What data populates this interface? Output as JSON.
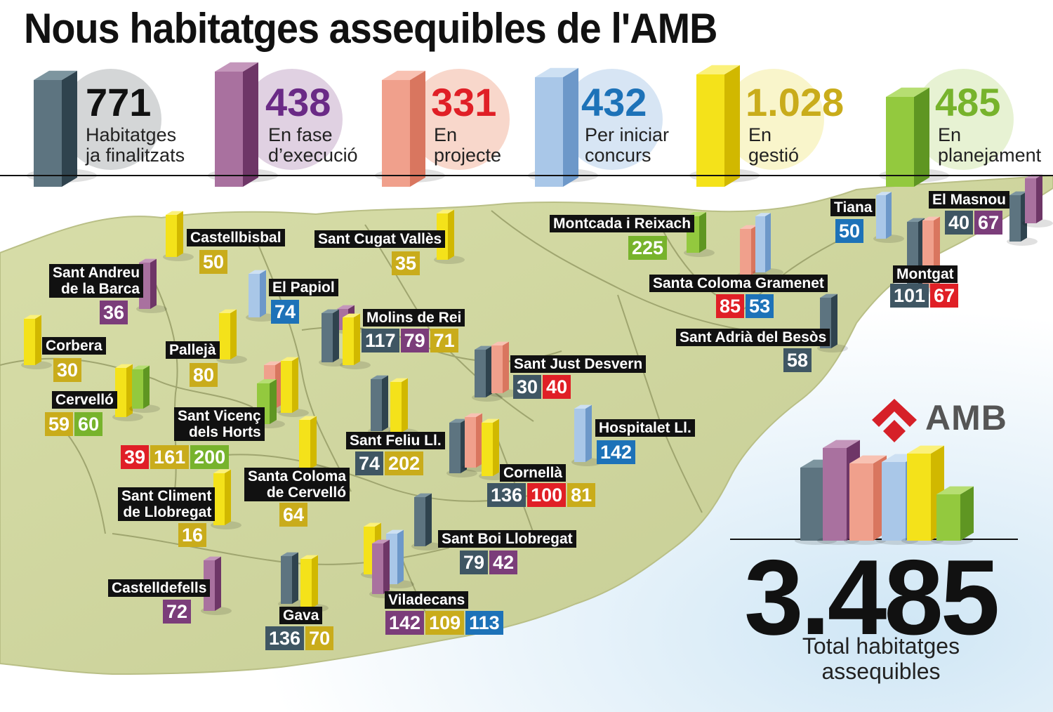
{
  "title": "Nous habitatges assequibles de l'AMB",
  "colors": {
    "finalitzats": "#3f5663",
    "execucio": "#7b3d7a",
    "projecte": "#e01f26",
    "iniciar_concurs": "#1d72b8",
    "gestio": "#c9ac1b",
    "planejament": "#77b32c"
  },
  "categories": [
    {
      "key": "finalitzats",
      "value": "771",
      "label_1": "Habitatges",
      "label_2": "ja finalitzats"
    },
    {
      "key": "execucio",
      "value": "438",
      "label_1": "En fase",
      "label_2": "d’execució"
    },
    {
      "key": "projecte",
      "value": "331",
      "label_1": "En",
      "label_2": "projecte"
    },
    {
      "key": "iniciar_concurs",
      "value": "432",
      "label_1": "Per iniciar",
      "label_2": "concurs"
    },
    {
      "key": "gestio",
      "value": "1.028",
      "label_1": "En",
      "label_2": "gestió"
    },
    {
      "key": "planejament",
      "value": "485",
      "label_1": "En",
      "label_2": "planejament"
    }
  ],
  "municipalities": [
    {
      "name_1": "Castellbisbal",
      "values": [
        {
          "v": "50",
          "cat": "gestio"
        }
      ]
    },
    {
      "name_1": "Sant Cugat Vallès",
      "values": [
        {
          "v": "35",
          "cat": "gestio"
        }
      ]
    },
    {
      "name_1": "Montcada i Reixach",
      "values": [
        {
          "v": "225",
          "cat": "planejament"
        }
      ]
    },
    {
      "name_1": "Tiana",
      "values": [
        {
          "v": "50",
          "cat": "iniciar_concurs"
        }
      ]
    },
    {
      "name_1": "El Masnou",
      "values": [
        {
          "v": "40",
          "cat": "finalitzats"
        },
        {
          "v": "67",
          "cat": "execucio"
        }
      ]
    },
    {
      "name_1": "Sant Andreu",
      "name_2": "de la Barca",
      "values": [
        {
          "v": "36",
          "cat": "execucio"
        }
      ]
    },
    {
      "name_1": "El Papiol",
      "values": [
        {
          "v": "74",
          "cat": "iniciar_concurs"
        }
      ]
    },
    {
      "name_1": "Molins de Rei",
      "values": [
        {
          "v": "117",
          "cat": "finalitzats"
        },
        {
          "v": "79",
          "cat": "execucio"
        },
        {
          "v": "71",
          "cat": "gestio"
        }
      ]
    },
    {
      "name_1": "Santa Coloma Gramenet",
      "values": [
        {
          "v": "85",
          "cat": "projecte"
        },
        {
          "v": "53",
          "cat": "iniciar_concurs"
        }
      ]
    },
    {
      "name_1": "Montgat",
      "values": [
        {
          "v": "101",
          "cat": "finalitzats"
        },
        {
          "v": "67",
          "cat": "projecte"
        }
      ]
    },
    {
      "name_1": "Corbera",
      "values": [
        {
          "v": "30",
          "cat": "gestio"
        }
      ]
    },
    {
      "name_1": "Pallejà",
      "values": [
        {
          "v": "80",
          "cat": "gestio"
        }
      ]
    },
    {
      "name_1": "Sant Adrià del Besòs",
      "values": [
        {
          "v": "58",
          "cat": "finalitzats"
        }
      ]
    },
    {
      "name_1": "Sant Just Desvern",
      "values": [
        {
          "v": "30",
          "cat": "finalitzats"
        },
        {
          "v": "40",
          "cat": "projecte"
        }
      ]
    },
    {
      "name_1": "Cervelló",
      "values": [
        {
          "v": "59",
          "cat": "gestio"
        },
        {
          "v": "60",
          "cat": "planejament"
        }
      ]
    },
    {
      "name_1": "Sant Vicenç",
      "name_2": "dels Horts",
      "values": [
        {
          "v": "39",
          "cat": "projecte"
        },
        {
          "v": "161",
          "cat": "gestio"
        },
        {
          "v": "200",
          "cat": "planejament"
        }
      ]
    },
    {
      "name_1": "Sant Feliu Ll.",
      "values": [
        {
          "v": "74",
          "cat": "finalitzats"
        },
        {
          "v": "202",
          "cat": "gestio"
        }
      ]
    },
    {
      "name_1": "Hospitalet Ll.",
      "values": [
        {
          "v": "142",
          "cat": "iniciar_concurs"
        }
      ]
    },
    {
      "name_1": "Cornellà",
      "values": [
        {
          "v": "136",
          "cat": "finalitzats"
        },
        {
          "v": "100",
          "cat": "projecte"
        },
        {
          "v": "81",
          "cat": "gestio"
        }
      ]
    },
    {
      "name_1": "Santa Coloma",
      "name_2": "de Cervelló",
      "values": [
        {
          "v": "64",
          "cat": "gestio"
        }
      ]
    },
    {
      "name_1": "Sant Climent",
      "name_2": "de Llobregat",
      "values": [
        {
          "v": "16",
          "cat": "gestio"
        }
      ]
    },
    {
      "name_1": "Sant Boi Llobregat",
      "values": [
        {
          "v": "79",
          "cat": "finalitzats"
        },
        {
          "v": "42",
          "cat": "execucio"
        }
      ]
    },
    {
      "name_1": "Castelldefells",
      "values": [
        {
          "v": "72",
          "cat": "execucio"
        }
      ]
    },
    {
      "name_1": "Gava",
      "values": [
        {
          "v": "136",
          "cat": "finalitzats"
        },
        {
          "v": "70",
          "cat": "gestio"
        }
      ]
    },
    {
      "name_1": "Viladecans",
      "values": [
        {
          "v": "142",
          "cat": "execucio"
        },
        {
          "v": "109",
          "cat": "gestio"
        },
        {
          "v": "113",
          "cat": "iniciar_concurs"
        }
      ]
    }
  ],
  "logo": {
    "text": "AMB"
  },
  "total": {
    "value": "3.485",
    "label_1": "Total habitatges",
    "label_2": "assequibles"
  }
}
